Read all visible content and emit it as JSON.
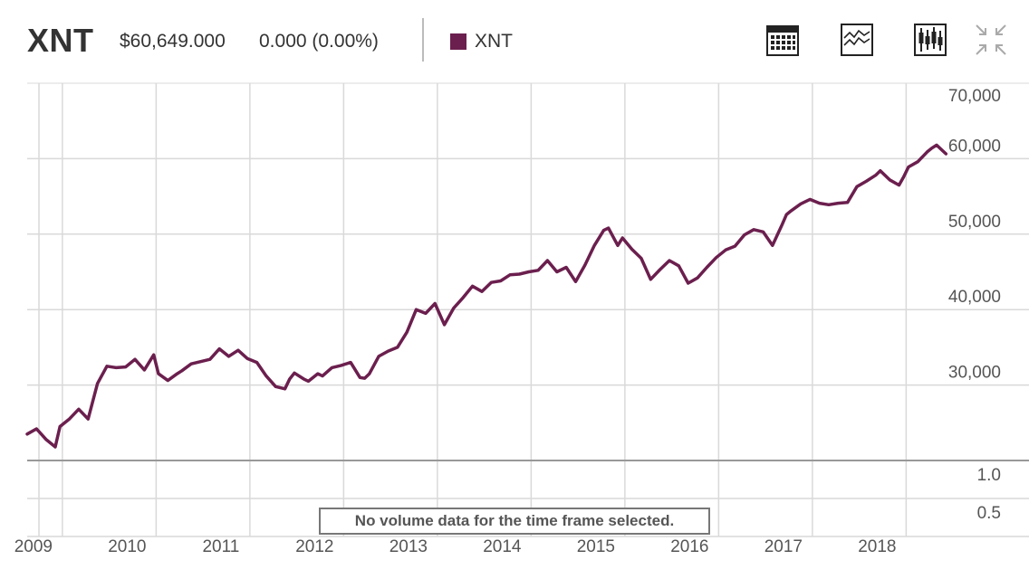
{
  "header": {
    "ticker": "XNT",
    "price": "$60,649.000",
    "change": "0.000 (0.00%)",
    "legend_label": "XNT"
  },
  "toolbar": {
    "icons": [
      "calendar-icon",
      "compare-icon",
      "candlestick-icon",
      "collapse-icon"
    ]
  },
  "colors": {
    "series": "#6b1f4e",
    "grid": "#d9d9d9",
    "axis": "#999999"
  },
  "volume": {
    "notice": "No volume data for the time frame selected.",
    "ticks": [
      "1.0",
      "0.5"
    ]
  },
  "chart_data": {
    "type": "line",
    "series": [
      {
        "name": "XNT",
        "x": [
          2008.75,
          2008.85,
          2008.95,
          2009.05,
          2009.1,
          2009.2,
          2009.3,
          2009.4,
          2009.5,
          2009.6,
          2009.7,
          2009.8,
          2009.9,
          2010.0,
          2010.1,
          2010.15,
          2010.25,
          2010.35,
          2010.4,
          2010.5,
          2010.6,
          2010.7,
          2010.8,
          2010.9,
          2011.0,
          2011.1,
          2011.2,
          2011.3,
          2011.4,
          2011.5,
          2011.55,
          2011.6,
          2011.7,
          2011.75,
          2011.85,
          2011.9,
          2012.0,
          2012.1,
          2012.2,
          2012.3,
          2012.35,
          2012.4,
          2012.5,
          2012.6,
          2012.7,
          2012.8,
          2012.9,
          2013.0,
          2013.1,
          2013.2,
          2013.3,
          2013.4,
          2013.5,
          2013.6,
          2013.7,
          2013.8,
          2013.9,
          2014.0,
          2014.1,
          2014.2,
          2014.3,
          2014.4,
          2014.5,
          2014.6,
          2014.7,
          2014.8,
          2014.9,
          2014.95,
          2015.05,
          2015.1,
          2015.2,
          2015.3,
          2015.4,
          2015.5,
          2015.6,
          2015.7,
          2015.8,
          2015.9,
          2016.0,
          2016.1,
          2016.2,
          2016.3,
          2016.4,
          2016.5,
          2016.6,
          2016.7,
          2016.8,
          2016.85,
          2016.9,
          2017.0,
          2017.1,
          2017.2,
          2017.3,
          2017.4,
          2017.5,
          2017.6,
          2017.7,
          2017.8,
          2017.85,
          2017.95,
          2018.05,
          2018.1,
          2018.15,
          2018.25,
          2018.35,
          2018.4,
          2018.45,
          2018.52,
          2018.55
        ],
        "y": [
          23500,
          24200,
          22800,
          21800,
          24500,
          25500,
          26800,
          25500,
          30200,
          32500,
          32300,
          32400,
          33400,
          32000,
          34000,
          31500,
          30600,
          31500,
          31900,
          32800,
          33100,
          33400,
          34800,
          33800,
          34600,
          33500,
          33000,
          31200,
          29800,
          29500,
          30800,
          31600,
          30800,
          30500,
          31500,
          31200,
          32300,
          32600,
          33000,
          31000,
          30900,
          31500,
          33800,
          34500,
          35000,
          37000,
          40000,
          39500,
          40800,
          38000,
          40200,
          41600,
          43100,
          42400,
          43600,
          43800,
          44600,
          44700,
          45000,
          45200,
          46500,
          45000,
          45600,
          43700,
          45900,
          48500,
          50500,
          50800,
          48500,
          49500,
          48000,
          46800,
          44000,
          45300,
          46500,
          45800,
          43500,
          44200,
          45600,
          46900,
          47900,
          48400,
          49900,
          50600,
          50300,
          48500,
          51200,
          52600,
          53100,
          54000,
          54600,
          54100,
          53900,
          54100,
          54200,
          56300,
          57000,
          57800,
          58400,
          57200,
          56500,
          57600,
          58900,
          59600,
          60900,
          61400,
          61800,
          61000,
          60650
        ]
      }
    ],
    "x_ticks": [
      "2009",
      "2010",
      "2011",
      "2012",
      "2013",
      "2014",
      "2015",
      "2016",
      "2017",
      "2018"
    ],
    "y_ticks": [
      "30,000",
      "40,000",
      "50,000",
      "60,000",
      "70,000"
    ],
    "y_tick_values": [
      30000,
      40000,
      50000,
      60000,
      70000
    ],
    "ylim": [
      20000,
      70000
    ],
    "xlim": [
      2008.75,
      2019.0
    ],
    "grid": true,
    "legend_position": "top"
  }
}
